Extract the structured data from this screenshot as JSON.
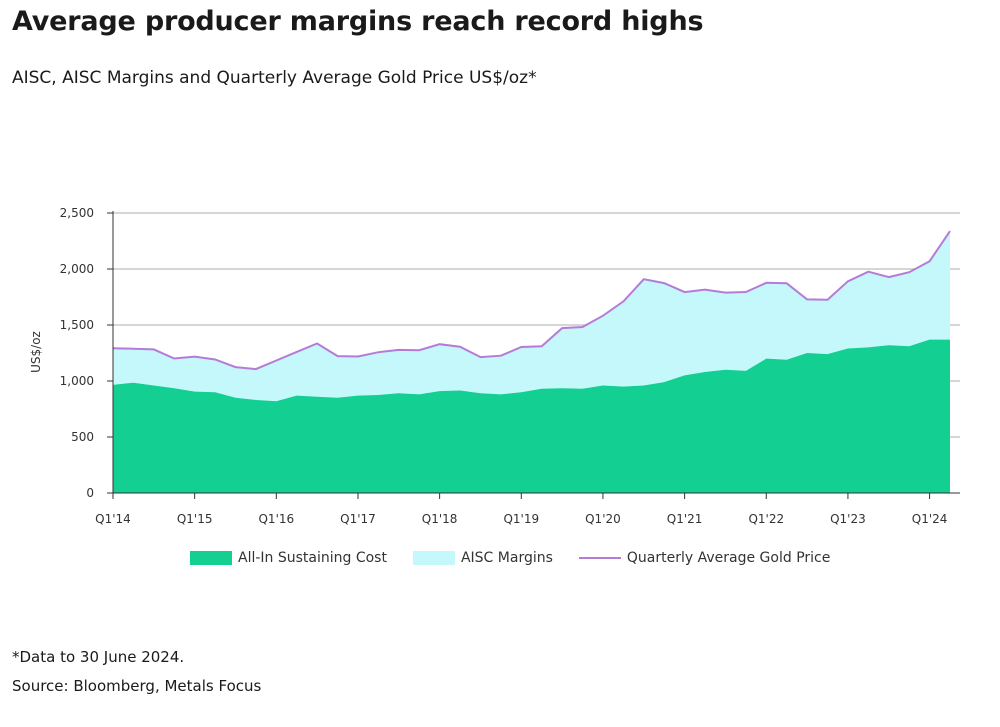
{
  "header": {
    "title": "Average producer margins reach record highs",
    "subtitle": "AISC, AISC Margins and Quarterly Average Gold Price US$/oz*"
  },
  "footer": {
    "footnote": "*Data to 30 June 2024.",
    "source": "Source: Bloomberg, Metals Focus"
  },
  "colors": {
    "aisc": "#13cf91",
    "margins": "#c4f8fb",
    "gold_price": "#b57bd8",
    "grid": "#c8c8c8",
    "axis": "#333333"
  },
  "legend": {
    "aisc": "All-In Sustaining Cost",
    "margins": "AISC Margins",
    "gold_price": "Quarterly Average Gold Price"
  },
  "chart_data": {
    "type": "area",
    "ylabel": "US$/oz",
    "ylim": [
      0,
      2500
    ],
    "y_ticks": [
      0,
      500,
      1000,
      1500,
      2000,
      2500
    ],
    "y_tick_labels": [
      "0",
      "500",
      "1,000",
      "1,500",
      "2,000",
      "2,500"
    ],
    "x_tick_labels": [
      "Q1'14",
      "Q1'15",
      "Q1'16",
      "Q1'17",
      "Q1'18",
      "Q1'19",
      "Q1'20",
      "Q1'21",
      "Q1'22",
      "Q1'23",
      "Q1'24"
    ],
    "grid": "horizontal",
    "legend_position": "bottom",
    "categories": [
      "Q1'14",
      "Q2'14",
      "Q3'14",
      "Q4'14",
      "Q1'15",
      "Q2'15",
      "Q3'15",
      "Q4'15",
      "Q1'16",
      "Q2'16",
      "Q3'16",
      "Q4'16",
      "Q1'17",
      "Q2'17",
      "Q3'17",
      "Q4'17",
      "Q1'18",
      "Q2'18",
      "Q3'18",
      "Q4'18",
      "Q1'19",
      "Q2'19",
      "Q3'19",
      "Q4'19",
      "Q1'20",
      "Q2'20",
      "Q3'20",
      "Q4'20",
      "Q1'21",
      "Q2'21",
      "Q3'21",
      "Q4'21",
      "Q1'22",
      "Q2'22",
      "Q3'22",
      "Q4'22",
      "Q1'23",
      "Q2'23",
      "Q3'23",
      "Q4'23",
      "Q1'24",
      "Q2'24"
    ],
    "series": [
      {
        "name": "All-In Sustaining Cost",
        "values": [
          965,
          985,
          960,
          935,
          905,
          900,
          850,
          830,
          820,
          870,
          860,
          850,
          870,
          875,
          890,
          880,
          910,
          915,
          890,
          880,
          900,
          930,
          935,
          930,
          960,
          950,
          960,
          990,
          1050,
          1080,
          1100,
          1090,
          1200,
          1190,
          1250,
          1240,
          1290,
          1300,
          1320,
          1310,
          1370,
          1370
        ]
      },
      {
        "name": "Quarterly Average Gold Price",
        "values": [
          1293,
          1288,
          1282,
          1201,
          1218,
          1192,
          1124,
          1106,
          1183,
          1260,
          1335,
          1222,
          1219,
          1257,
          1278,
          1275,
          1329,
          1306,
          1213,
          1226,
          1304,
          1310,
          1472,
          1482,
          1583,
          1711,
          1909,
          1874,
          1794,
          1816,
          1789,
          1795,
          1877,
          1872,
          1729,
          1726,
          1890,
          1976,
          1928,
          1971,
          2070,
          2338
        ]
      }
    ]
  }
}
